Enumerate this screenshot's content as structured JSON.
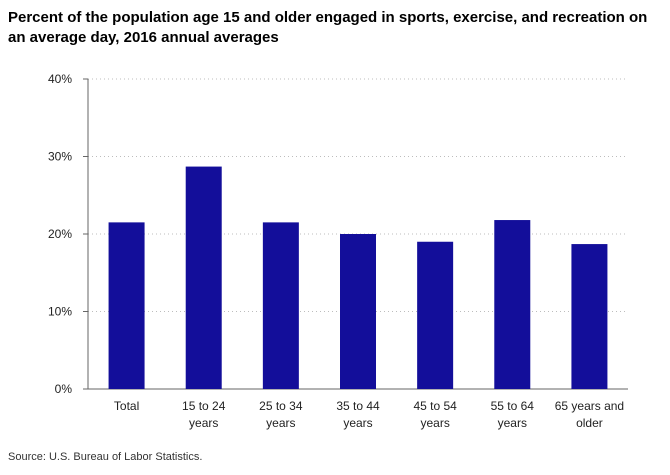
{
  "chart_data": {
    "type": "bar",
    "title": "Percent of the population age 15 and older engaged in sports, exercise, and recreation on an average day, 2016 annual averages",
    "categories": [
      [
        "Total"
      ],
      [
        "15 to 24",
        "years"
      ],
      [
        "25 to 34",
        "years"
      ],
      [
        "35 to 44",
        "years"
      ],
      [
        "45 to 54",
        "years"
      ],
      [
        "55 to 64",
        "years"
      ],
      [
        "65 years and",
        "older"
      ]
    ],
    "values": [
      21.5,
      28.7,
      21.5,
      20.0,
      19.0,
      21.8,
      18.7
    ],
    "y_ticks": [
      "0%",
      "10%",
      "20%",
      "30%",
      "40%"
    ],
    "ylim": [
      0,
      40
    ],
    "xlabel": "",
    "ylabel": "",
    "grid": true,
    "bar_color": "#130e9a",
    "source": "Source: U.S. Bureau of Labor Statistics."
  }
}
